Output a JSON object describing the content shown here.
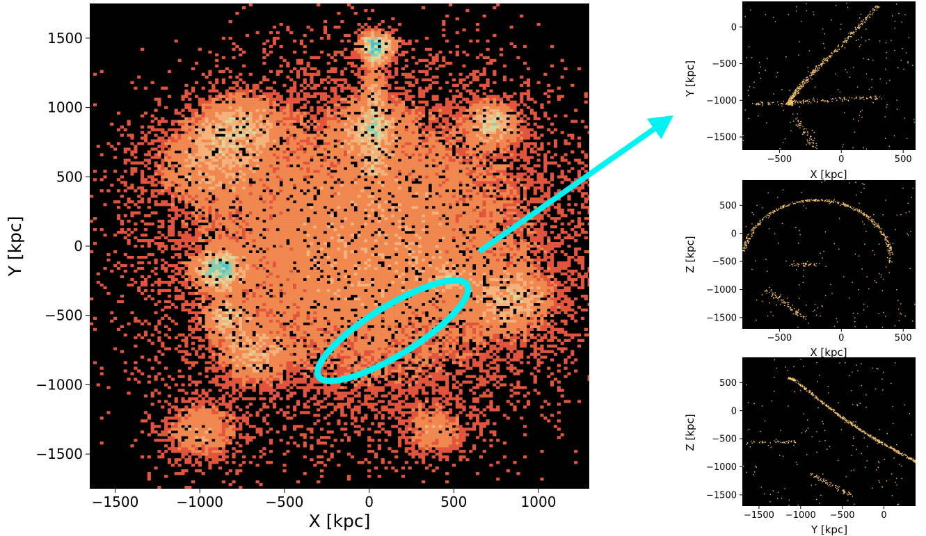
{
  "chart_data": [
    {
      "type": "heatmap",
      "xlabel": "X [kpc]",
      "ylabel": "Y [kpc]",
      "xlim": [
        -1650,
        1300
      ],
      "ylim": [
        -1750,
        1750
      ],
      "xticks": [
        -1500,
        -1000,
        -500,
        0,
        500,
        1000
      ],
      "yticks": [
        -1500,
        -1000,
        -500,
        0,
        500,
        1000,
        1500
      ],
      "background": "#000000",
      "colormap": [
        "#e2553c",
        "#f0884f",
        "#f6b27c",
        "#d9d79a",
        "#8ad0b0",
        "#4cc5c8"
      ],
      "grid": false,
      "annotations": [
        {
          "shape": "ellipse",
          "center": [
            140,
            -610
          ],
          "semi_major": 550,
          "semi_minor": 165,
          "angle_deg": 38,
          "color": "#00f2f2"
        },
        {
          "shape": "arrow",
          "from": [
            650,
            -40
          ],
          "to": "first inset panel",
          "color": "#00f2f2"
        }
      ]
    },
    {
      "type": "scatter",
      "xlabel": "X [kpc]",
      "ylabel": "Y [kpc]",
      "xlim": [
        -800,
        600
      ],
      "ylim": [
        -1680,
        350
      ],
      "xticks": [
        -500,
        0,
        500
      ],
      "yticks": [
        -1500,
        -1000,
        -500,
        0
      ],
      "background": "#000000",
      "point_color": "#f2c26a",
      "grid": false
    },
    {
      "type": "scatter",
      "xlabel": "X [kpc]",
      "ylabel": "Z [kpc]",
      "xlim": [
        -800,
        600
      ],
      "ylim": [
        -1700,
        950
      ],
      "xticks": [
        -500,
        0,
        500
      ],
      "yticks": [
        -1500,
        -1000,
        -500,
        0,
        500
      ],
      "background": "#000000",
      "point_color": "#f2c26a",
      "grid": false
    },
    {
      "type": "scatter",
      "xlabel": "Y [kpc]",
      "ylabel": "Z [kpc]",
      "xlim": [
        -1700,
        380
      ],
      "ylim": [
        -1700,
        950
      ],
      "xticks": [
        -1500,
        -1000,
        -500,
        0
      ],
      "yticks": [
        -1500,
        -1000,
        -500,
        0,
        500
      ],
      "background": "#000000",
      "point_color": "#f2c26a",
      "grid": false
    }
  ]
}
